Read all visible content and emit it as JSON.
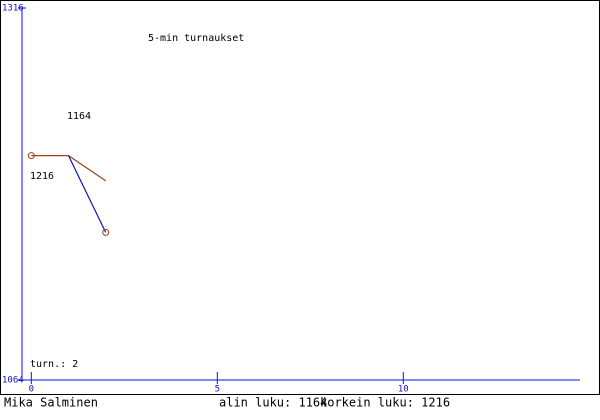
{
  "chart_data": {
    "type": "line",
    "title": "5-min turnaukset",
    "ylim": [
      1064,
      1316
    ],
    "yticks": [
      1064,
      1316
    ],
    "xlim": [
      -0.25,
      14.75
    ],
    "xticks": [
      0,
      5,
      10
    ],
    "series": [
      {
        "color": "#a0401c",
        "x": [
          0,
          1,
          2
        ],
        "values": [
          1216,
          1216,
          1199
        ]
      },
      {
        "color": "#1010c0",
        "x": [
          1,
          2
        ],
        "values": [
          1216,
          1164
        ]
      }
    ],
    "markers": {
      "color": "#a0401c",
      "x": [
        0,
        2
      ],
      "values": [
        1216,
        1164
      ]
    },
    "annotations": [
      "1164",
      "1216"
    ],
    "games": "turn.: 2",
    "player": "Mika Salminen",
    "lowest": "alin luku: 1164",
    "highest": "korkein luku: 1216"
  }
}
